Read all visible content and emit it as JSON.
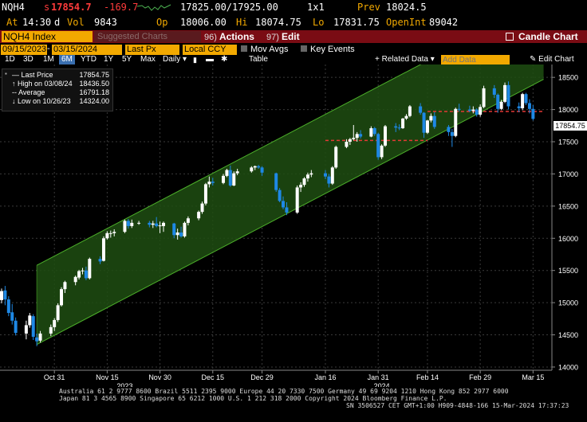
{
  "quote": {
    "ticker": "NQH4",
    "last_prefix": "s",
    "last": "17854.7",
    "change": "-169.7",
    "bid_ask": "17825.00/17925.00",
    "size": "1x1",
    "prev_label": "Prev",
    "prev": "18024.5",
    "at_label": "At",
    "time": "14:30",
    "d_flag": "d",
    "vol_label": "Vol",
    "vol": "9843",
    "op_label": "Op",
    "open": "18006.00",
    "hi_label": "Hi",
    "high": "18074.75",
    "lo_label": "Lo",
    "low": "17831.75",
    "oi_label": "OpenInt",
    "open_int": "89042"
  },
  "menubar": {
    "security": "NQH4 Index",
    "suggested": "Suggested Charts",
    "actions_num": "96)",
    "actions": "Actions",
    "edit_num": "97)",
    "edit": "Edit",
    "chart_type": "Candle Chart"
  },
  "toolbar": {
    "start_date": "09/15/2023",
    "end_date": "03/15/2024",
    "field": "Last Px",
    "currency": "Local CCY",
    "mov_avgs": "Mov Avgs",
    "key_events": "Key Events",
    "periods": [
      "1D",
      "3D",
      "1M",
      "6M",
      "YTD",
      "1Y",
      "5Y",
      "Max"
    ],
    "selected_period": "6M",
    "frequency": "Daily",
    "table": "Table",
    "related_data": "Related Data",
    "add_data_placeholder": "Add Data",
    "edit_chart": "Edit Chart"
  },
  "legend": {
    "last_price_label": "Last Price",
    "last_price": "17854.75",
    "high_label": "High on 03/08/24",
    "high": "18436.50",
    "average_label": "Average",
    "average": "16791.18",
    "low_label": "Low on 10/26/23",
    "low": "14324.00"
  },
  "price_tag": "17854.75",
  "colors": {
    "up": "#ffffff",
    "down": "#1e88e5",
    "channel_fill": "#1f4d12",
    "channel_line": "#4caf2a",
    "support": "#e53935",
    "accent": "#f2a900"
  },
  "chart_data": {
    "type": "candlestick",
    "ylim": [
      13950,
      18700
    ],
    "yticks": [
      14000,
      14500,
      15000,
      15500,
      16000,
      16500,
      17000,
      17500,
      18000,
      18500
    ],
    "xticks": [
      "Oct 31",
      "Nov 15",
      "Nov 30",
      "Dec 15",
      "Dec 29",
      "Jan 16",
      "Jan 31",
      "Feb 14",
      "Feb 29",
      "Mar 15"
    ],
    "year_labels": [
      "2023",
      "2024"
    ],
    "x_range": [
      "2023-10-16",
      "2024-03-19"
    ],
    "trend_channel": {
      "lower": [
        [
          "2023-10-26",
          14350
        ],
        [
          "2024-03-18",
          18470
        ]
      ],
      "upper": [
        [
          "2023-10-26",
          15580
        ],
        [
          "2024-03-18",
          19700
        ]
      ]
    },
    "support_lines": [
      {
        "from": "2024-01-16",
        "to": "2024-02-14",
        "value": 17520
      },
      {
        "from": "2024-02-14",
        "to": "2024-03-18",
        "value": 17970
      }
    ],
    "candles": [
      {
        "d": "2023-10-16",
        "o": 15040,
        "h": 15220,
        "l": 14990,
        "c": 15180
      },
      {
        "d": "2023-10-17",
        "o": 15190,
        "h": 15260,
        "l": 14960,
        "c": 15050
      },
      {
        "d": "2023-10-18",
        "o": 15050,
        "h": 15100,
        "l": 14790,
        "c": 14840
      },
      {
        "d": "2023-10-19",
        "o": 14850,
        "h": 14980,
        "l": 14660,
        "c": 14720
      },
      {
        "d": "2023-10-20",
        "o": 14720,
        "h": 14770,
        "l": 14490,
        "c": 14530
      },
      {
        "d": "2023-10-23",
        "o": 14520,
        "h": 14720,
        "l": 14430,
        "c": 14650
      },
      {
        "d": "2023-10-24",
        "o": 14650,
        "h": 14840,
        "l": 14610,
        "c": 14800
      },
      {
        "d": "2023-10-25",
        "o": 14790,
        "h": 14820,
        "l": 14420,
        "c": 14470
      },
      {
        "d": "2023-10-26",
        "o": 14460,
        "h": 14520,
        "l": 14324,
        "c": 14400
      },
      {
        "d": "2023-10-27",
        "o": 14410,
        "h": 14560,
        "l": 14380,
        "c": 14520
      },
      {
        "d": "2023-10-30",
        "o": 14520,
        "h": 14660,
        "l": 14480,
        "c": 14620
      },
      {
        "d": "2023-10-31",
        "o": 14620,
        "h": 14760,
        "l": 14560,
        "c": 14730
      },
      {
        "d": "2023-11-01",
        "o": 14730,
        "h": 14990,
        "l": 14700,
        "c": 14960
      },
      {
        "d": "2023-11-02",
        "o": 14960,
        "h": 15240,
        "l": 14940,
        "c": 15210
      },
      {
        "d": "2023-11-03",
        "o": 15210,
        "h": 15340,
        "l": 15150,
        "c": 15320
      },
      {
        "d": "2023-11-06",
        "o": 15320,
        "h": 15420,
        "l": 15270,
        "c": 15400
      },
      {
        "d": "2023-11-07",
        "o": 15390,
        "h": 15510,
        "l": 15360,
        "c": 15490
      },
      {
        "d": "2023-11-08",
        "o": 15490,
        "h": 15540,
        "l": 15440,
        "c": 15500
      },
      {
        "d": "2023-11-09",
        "o": 15500,
        "h": 15560,
        "l": 15350,
        "c": 15380
      },
      {
        "d": "2023-11-10",
        "o": 15380,
        "h": 15700,
        "l": 15360,
        "c": 15680
      },
      {
        "d": "2023-11-13",
        "o": 15680,
        "h": 15720,
        "l": 15600,
        "c": 15640
      },
      {
        "d": "2023-11-14",
        "o": 15650,
        "h": 16030,
        "l": 15640,
        "c": 16000
      },
      {
        "d": "2023-11-15",
        "o": 16000,
        "h": 16110,
        "l": 15980,
        "c": 16080
      },
      {
        "d": "2023-11-16",
        "o": 16070,
        "h": 16120,
        "l": 16010,
        "c": 16080
      },
      {
        "d": "2023-11-17",
        "o": 16080,
        "h": 16140,
        "l": 16030,
        "c": 16100
      },
      {
        "d": "2023-11-20",
        "o": 16100,
        "h": 16290,
        "l": 16080,
        "c": 16270
      },
      {
        "d": "2023-11-21",
        "o": 16270,
        "h": 16300,
        "l": 16150,
        "c": 16190
      },
      {
        "d": "2023-11-22",
        "o": 16190,
        "h": 16290,
        "l": 16160,
        "c": 16240
      },
      {
        "d": "2023-11-24",
        "o": 16240,
        "h": 16270,
        "l": 16210,
        "c": 16240
      },
      {
        "d": "2023-11-27",
        "o": 16240,
        "h": 16270,
        "l": 16170,
        "c": 16210
      },
      {
        "d": "2023-11-28",
        "o": 16210,
        "h": 16270,
        "l": 16160,
        "c": 16230
      },
      {
        "d": "2023-11-29",
        "o": 16230,
        "h": 16330,
        "l": 16170,
        "c": 16190
      },
      {
        "d": "2023-11-30",
        "o": 16190,
        "h": 16260,
        "l": 16080,
        "c": 16200
      },
      {
        "d": "2023-12-01",
        "o": 16190,
        "h": 16260,
        "l": 16100,
        "c": 16240
      },
      {
        "d": "2023-12-04",
        "o": 16230,
        "h": 16240,
        "l": 16000,
        "c": 16050
      },
      {
        "d": "2023-12-05",
        "o": 16050,
        "h": 16150,
        "l": 15980,
        "c": 16090
      },
      {
        "d": "2023-12-06",
        "o": 16090,
        "h": 16180,
        "l": 16010,
        "c": 16030
      },
      {
        "d": "2023-12-07",
        "o": 16030,
        "h": 16260,
        "l": 16010,
        "c": 16240
      },
      {
        "d": "2023-12-08",
        "o": 16240,
        "h": 16340,
        "l": 16200,
        "c": 16310
      },
      {
        "d": "2023-12-11",
        "o": 16310,
        "h": 16430,
        "l": 16280,
        "c": 16410
      },
      {
        "d": "2023-12-12",
        "o": 16410,
        "h": 16570,
        "l": 16380,
        "c": 16540
      },
      {
        "d": "2023-12-13",
        "o": 16540,
        "h": 16860,
        "l": 16510,
        "c": 16840
      },
      {
        "d": "2023-12-14",
        "o": 16840,
        "h": 16960,
        "l": 16790,
        "c": 16880
      },
      {
        "d": "2023-12-15",
        "o": 16880,
        "h": 16940,
        "l": 16820,
        "c": 16860
      },
      {
        "d": "2023-12-18",
        "o": 16860,
        "h": 17000,
        "l": 16840,
        "c": 16970
      },
      {
        "d": "2023-12-19",
        "o": 16970,
        "h": 17080,
        "l": 16950,
        "c": 17060
      },
      {
        "d": "2023-12-20",
        "o": 17060,
        "h": 17130,
        "l": 16800,
        "c": 16820
      },
      {
        "d": "2023-12-21",
        "o": 16820,
        "h": 17040,
        "l": 16810,
        "c": 17010
      },
      {
        "d": "2023-12-22",
        "o": 17010,
        "h": 17080,
        "l": 16980,
        "c": 17040
      },
      {
        "d": "2023-12-26",
        "o": 17040,
        "h": 17120,
        "l": 17020,
        "c": 17100
      },
      {
        "d": "2023-12-27",
        "o": 17100,
        "h": 17130,
        "l": 17060,
        "c": 17120
      },
      {
        "d": "2023-12-28",
        "o": 17120,
        "h": 17140,
        "l": 17080,
        "c": 17100
      },
      {
        "d": "2023-12-29",
        "o": 17100,
        "h": 17120,
        "l": 16970,
        "c": 17020
      },
      {
        "d": "2024-01-02",
        "o": 17010,
        "h": 17020,
        "l": 16720,
        "c": 16750
      },
      {
        "d": "2024-01-03",
        "o": 16750,
        "h": 16780,
        "l": 16560,
        "c": 16580
      },
      {
        "d": "2024-01-04",
        "o": 16580,
        "h": 16650,
        "l": 16450,
        "c": 16480
      },
      {
        "d": "2024-01-05",
        "o": 16480,
        "h": 16560,
        "l": 16360,
        "c": 16400
      },
      {
        "d": "2024-01-08",
        "o": 16400,
        "h": 16820,
        "l": 16380,
        "c": 16790
      },
      {
        "d": "2024-01-09",
        "o": 16790,
        "h": 16870,
        "l": 16720,
        "c": 16830
      },
      {
        "d": "2024-01-10",
        "o": 16830,
        "h": 16950,
        "l": 16800,
        "c": 16930
      },
      {
        "d": "2024-01-11",
        "o": 16930,
        "h": 17020,
        "l": 16880,
        "c": 16990
      },
      {
        "d": "2024-01-12",
        "o": 16990,
        "h": 17060,
        "l": 16950,
        "c": 17010
      },
      {
        "d": "2024-01-16",
        "o": 17010,
        "h": 17060,
        "l": 16920,
        "c": 16960
      },
      {
        "d": "2024-01-17",
        "o": 16960,
        "h": 17000,
        "l": 16790,
        "c": 16850
      },
      {
        "d": "2024-01-18",
        "o": 16850,
        "h": 17120,
        "l": 16830,
        "c": 17100
      },
      {
        "d": "2024-01-19",
        "o": 17100,
        "h": 17440,
        "l": 17080,
        "c": 17420
      },
      {
        "d": "2024-01-22",
        "o": 17420,
        "h": 17540,
        "l": 17400,
        "c": 17500
      },
      {
        "d": "2024-01-23",
        "o": 17500,
        "h": 17560,
        "l": 17450,
        "c": 17540
      },
      {
        "d": "2024-01-24",
        "o": 17540,
        "h": 17760,
        "l": 17520,
        "c": 17560
      },
      {
        "d": "2024-01-25",
        "o": 17560,
        "h": 17650,
        "l": 17500,
        "c": 17620
      },
      {
        "d": "2024-01-26",
        "o": 17620,
        "h": 17680,
        "l": 17550,
        "c": 17580
      },
      {
        "d": "2024-01-29",
        "o": 17580,
        "h": 17740,
        "l": 17570,
        "c": 17710
      },
      {
        "d": "2024-01-30",
        "o": 17710,
        "h": 17730,
        "l": 17590,
        "c": 17620
      },
      {
        "d": "2024-01-31",
        "o": 17620,
        "h": 17640,
        "l": 17220,
        "c": 17260
      },
      {
        "d": "2024-02-01",
        "o": 17260,
        "h": 17460,
        "l": 17230,
        "c": 17440
      },
      {
        "d": "2024-02-02",
        "o": 17440,
        "h": 17760,
        "l": 17420,
        "c": 17740
      },
      {
        "d": "2024-02-05",
        "o": 17740,
        "h": 17790,
        "l": 17650,
        "c": 17720
      },
      {
        "d": "2024-02-06",
        "o": 17720,
        "h": 17770,
        "l": 17680,
        "c": 17710
      },
      {
        "d": "2024-02-07",
        "o": 17710,
        "h": 17870,
        "l": 17700,
        "c": 17860
      },
      {
        "d": "2024-02-08",
        "o": 17860,
        "h": 17930,
        "l": 17840,
        "c": 17900
      },
      {
        "d": "2024-02-09",
        "o": 17900,
        "h": 18070,
        "l": 17880,
        "c": 18050
      },
      {
        "d": "2024-02-12",
        "o": 18050,
        "h": 18100,
        "l": 17920,
        "c": 17950
      },
      {
        "d": "2024-02-13",
        "o": 17950,
        "h": 17960,
        "l": 17560,
        "c": 17640
      },
      {
        "d": "2024-02-14",
        "o": 17640,
        "h": 17840,
        "l": 17620,
        "c": 17830
      },
      {
        "d": "2024-02-15",
        "o": 17830,
        "h": 17940,
        "l": 17800,
        "c": 17900
      },
      {
        "d": "2024-02-16",
        "o": 17900,
        "h": 17960,
        "l": 17700,
        "c": 17730
      },
      {
        "d": "2024-02-20",
        "o": 17730,
        "h": 17760,
        "l": 17590,
        "c": 17650
      },
      {
        "d": "2024-02-21",
        "o": 17650,
        "h": 17700,
        "l": 17420,
        "c": 17590
      },
      {
        "d": "2024-02-22",
        "o": 17590,
        "h": 18030,
        "l": 17570,
        "c": 18010
      },
      {
        "d": "2024-02-23",
        "o": 18010,
        "h": 18090,
        "l": 17970,
        "c": 18000
      },
      {
        "d": "2024-02-26",
        "o": 18000,
        "h": 18060,
        "l": 17960,
        "c": 17980
      },
      {
        "d": "2024-02-27",
        "o": 17980,
        "h": 18050,
        "l": 17940,
        "c": 18000
      },
      {
        "d": "2024-02-28",
        "o": 18000,
        "h": 18020,
        "l": 17890,
        "c": 17920
      },
      {
        "d": "2024-02-29",
        "o": 17920,
        "h": 18080,
        "l": 17890,
        "c": 18040
      },
      {
        "d": "2024-03-01",
        "o": 18040,
        "h": 18370,
        "l": 18020,
        "c": 18330
      },
      {
        "d": "2024-03-04",
        "o": 18330,
        "h": 18380,
        "l": 18180,
        "c": 18230
      },
      {
        "d": "2024-03-05",
        "o": 18230,
        "h": 18250,
        "l": 17950,
        "c": 18010
      },
      {
        "d": "2024-03-06",
        "o": 18010,
        "h": 18150,
        "l": 17990,
        "c": 18120
      },
      {
        "d": "2024-03-07",
        "o": 18120,
        "h": 18420,
        "l": 18100,
        "c": 18380
      },
      {
        "d": "2024-03-08",
        "o": 18380,
        "h": 18437,
        "l": 18000,
        "c": 18050
      },
      {
        "d": "2024-03-11",
        "o": 18050,
        "h": 18110,
        "l": 17960,
        "c": 18020
      },
      {
        "d": "2024-03-12",
        "o": 18020,
        "h": 18260,
        "l": 17990,
        "c": 18240
      },
      {
        "d": "2024-03-13",
        "o": 18240,
        "h": 18260,
        "l": 18070,
        "c": 18100
      },
      {
        "d": "2024-03-14",
        "o": 18100,
        "h": 18160,
        "l": 17940,
        "c": 18010
      },
      {
        "d": "2024-03-15",
        "o": 18010,
        "h": 18070,
        "l": 17830,
        "c": 17855
      }
    ]
  },
  "footer": {
    "line1": "Australia 61 2 9777 8600 Brazil 5511 2395 9000 Europe 44 20 7330 7500 Germany 49 69 9204 1210 Hong Kong 852 2977 6000",
    "line2": "Japan 81 3 4565 8900        Singapore 65 6212 1000        U.S. 1 212 318 2000              Copyright 2024 Bloomberg Finance L.P.",
    "line3": "SN 3506527 CET  GMT+1:00 H909-4848-166 15-Mar-2024 17:37:23"
  }
}
